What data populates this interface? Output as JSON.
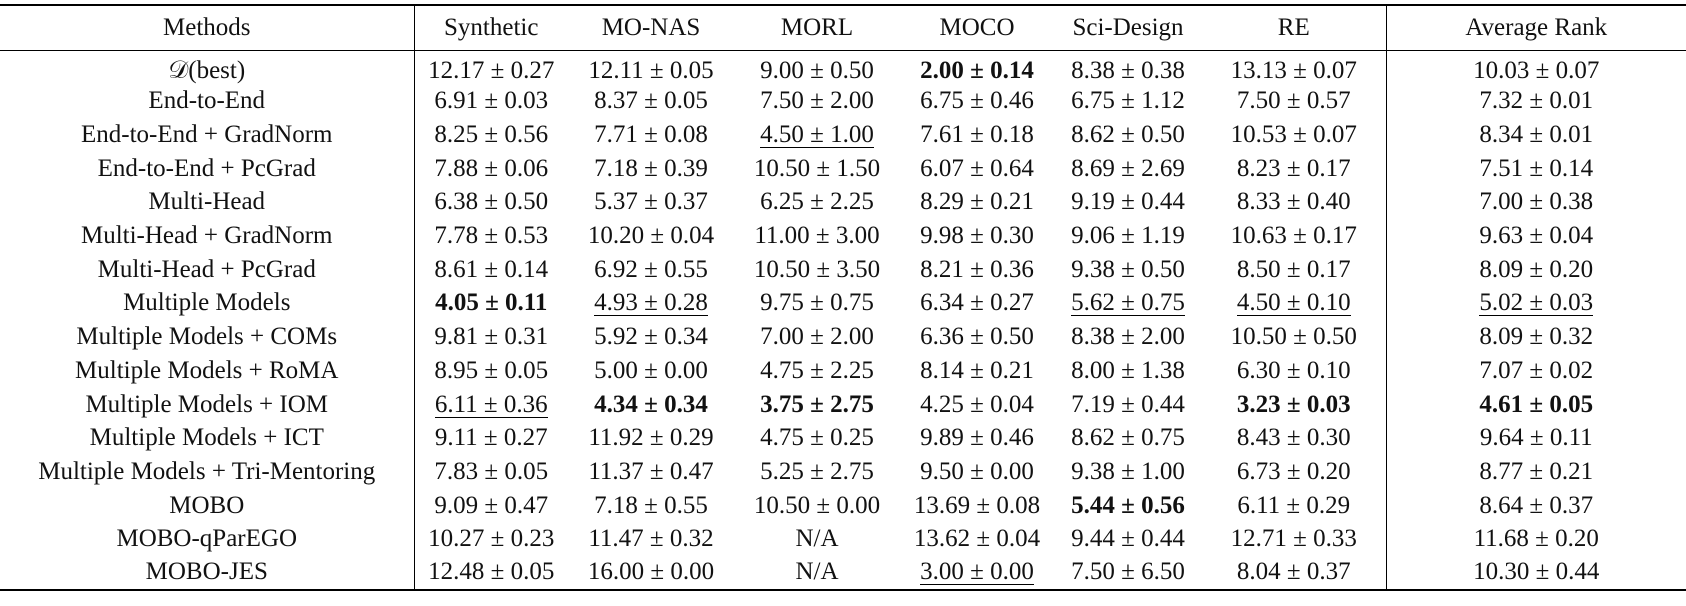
{
  "table": {
    "columns": [
      "Methods",
      "Synthetic",
      "MO-NAS",
      "MORL",
      "MOCO",
      "Sci-Design",
      "RE",
      "Average Rank"
    ],
    "rows": [
      {
        "method": "𝒟(best)",
        "cells": [
          {
            "v": "12.17 ± 0.27",
            "s": ""
          },
          {
            "v": "12.11 ± 0.05",
            "s": ""
          },
          {
            "v": "9.00 ± 0.50",
            "s": ""
          },
          {
            "v": "2.00 ± 0.14",
            "s": "bold"
          },
          {
            "v": "8.38 ± 0.38",
            "s": ""
          },
          {
            "v": "13.13 ± 0.07",
            "s": ""
          },
          {
            "v": "10.03 ± 0.07",
            "s": ""
          }
        ]
      },
      {
        "method": "End-to-End",
        "cells": [
          {
            "v": "6.91 ± 0.03",
            "s": ""
          },
          {
            "v": "8.37 ± 0.05",
            "s": ""
          },
          {
            "v": "7.50 ± 2.00",
            "s": ""
          },
          {
            "v": "6.75 ± 0.46",
            "s": ""
          },
          {
            "v": "6.75 ± 1.12",
            "s": ""
          },
          {
            "v": "7.50 ± 0.57",
            "s": ""
          },
          {
            "v": "7.32 ± 0.01",
            "s": ""
          }
        ]
      },
      {
        "method": "End-to-End + GradNorm",
        "cells": [
          {
            "v": "8.25 ± 0.56",
            "s": ""
          },
          {
            "v": "7.71 ± 0.08",
            "s": ""
          },
          {
            "v": "4.50 ± 1.00",
            "s": "underline"
          },
          {
            "v": "7.61 ± 0.18",
            "s": ""
          },
          {
            "v": "8.62 ± 0.50",
            "s": ""
          },
          {
            "v": "10.53 ± 0.07",
            "s": ""
          },
          {
            "v": "8.34 ± 0.01",
            "s": ""
          }
        ]
      },
      {
        "method": "End-to-End + PcGrad",
        "cells": [
          {
            "v": "7.88 ± 0.06",
            "s": ""
          },
          {
            "v": "7.18 ± 0.39",
            "s": ""
          },
          {
            "v": "10.50 ± 1.50",
            "s": ""
          },
          {
            "v": "6.07 ± 0.64",
            "s": ""
          },
          {
            "v": "8.69 ± 2.69",
            "s": ""
          },
          {
            "v": "8.23 ± 0.17",
            "s": ""
          },
          {
            "v": "7.51 ± 0.14",
            "s": ""
          }
        ]
      },
      {
        "method": "Multi-Head",
        "cells": [
          {
            "v": "6.38 ± 0.50",
            "s": ""
          },
          {
            "v": "5.37 ± 0.37",
            "s": ""
          },
          {
            "v": "6.25 ± 2.25",
            "s": ""
          },
          {
            "v": "8.29 ± 0.21",
            "s": ""
          },
          {
            "v": "9.19 ± 0.44",
            "s": ""
          },
          {
            "v": "8.33 ± 0.40",
            "s": ""
          },
          {
            "v": "7.00 ± 0.38",
            "s": ""
          }
        ]
      },
      {
        "method": "Multi-Head + GradNorm",
        "cells": [
          {
            "v": "7.78 ± 0.53",
            "s": ""
          },
          {
            "v": "10.20 ± 0.04",
            "s": ""
          },
          {
            "v": "11.00 ± 3.00",
            "s": ""
          },
          {
            "v": "9.98 ± 0.30",
            "s": ""
          },
          {
            "v": "9.06 ± 1.19",
            "s": ""
          },
          {
            "v": "10.63 ± 0.17",
            "s": ""
          },
          {
            "v": "9.63 ± 0.04",
            "s": ""
          }
        ]
      },
      {
        "method": "Multi-Head + PcGrad",
        "cells": [
          {
            "v": "8.61 ± 0.14",
            "s": ""
          },
          {
            "v": "6.92 ± 0.55",
            "s": ""
          },
          {
            "v": "10.50 ± 3.50",
            "s": ""
          },
          {
            "v": "8.21 ± 0.36",
            "s": ""
          },
          {
            "v": "9.38 ± 0.50",
            "s": ""
          },
          {
            "v": "8.50 ± 0.17",
            "s": ""
          },
          {
            "v": "8.09 ± 0.20",
            "s": ""
          }
        ]
      },
      {
        "method": "Multiple Models",
        "cells": [
          {
            "v": "4.05 ± 0.11",
            "s": "bold"
          },
          {
            "v": "4.93 ± 0.28",
            "s": "underline"
          },
          {
            "v": "9.75 ± 0.75",
            "s": ""
          },
          {
            "v": "6.34 ± 0.27",
            "s": ""
          },
          {
            "v": "5.62 ± 0.75",
            "s": "underline"
          },
          {
            "v": "4.50 ± 0.10",
            "s": "underline"
          },
          {
            "v": "5.02 ± 0.03",
            "s": "underline"
          }
        ]
      },
      {
        "method": "Multiple Models + COMs",
        "cells": [
          {
            "v": "9.81 ± 0.31",
            "s": ""
          },
          {
            "v": "5.92 ± 0.34",
            "s": ""
          },
          {
            "v": "7.00 ± 2.00",
            "s": ""
          },
          {
            "v": "6.36 ± 0.50",
            "s": ""
          },
          {
            "v": "8.38 ± 2.00",
            "s": ""
          },
          {
            "v": "10.50 ± 0.50",
            "s": ""
          },
          {
            "v": "8.09 ± 0.32",
            "s": ""
          }
        ]
      },
      {
        "method": "Multiple Models + RoMA",
        "cells": [
          {
            "v": "8.95 ± 0.05",
            "s": ""
          },
          {
            "v": "5.00 ± 0.00",
            "s": ""
          },
          {
            "v": "4.75 ± 2.25",
            "s": ""
          },
          {
            "v": "8.14 ± 0.21",
            "s": ""
          },
          {
            "v": "8.00 ± 1.38",
            "s": ""
          },
          {
            "v": "6.30 ± 0.10",
            "s": ""
          },
          {
            "v": "7.07 ± 0.02",
            "s": ""
          }
        ]
      },
      {
        "method": "Multiple Models + IOM",
        "cells": [
          {
            "v": "6.11 ± 0.36",
            "s": "underline"
          },
          {
            "v": "4.34 ± 0.34",
            "s": "bold"
          },
          {
            "v": "3.75 ± 2.75",
            "s": "bold"
          },
          {
            "v": "4.25 ± 0.04",
            "s": ""
          },
          {
            "v": "7.19 ± 0.44",
            "s": ""
          },
          {
            "v": "3.23 ± 0.03",
            "s": "bold"
          },
          {
            "v": "4.61 ± 0.05",
            "s": "bold"
          }
        ]
      },
      {
        "method": "Multiple Models + ICT",
        "cells": [
          {
            "v": "9.11 ± 0.27",
            "s": ""
          },
          {
            "v": "11.92 ± 0.29",
            "s": ""
          },
          {
            "v": "4.75 ± 0.25",
            "s": ""
          },
          {
            "v": "9.89 ± 0.46",
            "s": ""
          },
          {
            "v": "8.62 ± 0.75",
            "s": ""
          },
          {
            "v": "8.43 ± 0.30",
            "s": ""
          },
          {
            "v": "9.64 ± 0.11",
            "s": ""
          }
        ]
      },
      {
        "method": "Multiple Models + Tri-Mentoring",
        "cells": [
          {
            "v": "7.83 ± 0.05",
            "s": ""
          },
          {
            "v": "11.37 ± 0.47",
            "s": ""
          },
          {
            "v": "5.25 ± 2.75",
            "s": ""
          },
          {
            "v": "9.50 ± 0.00",
            "s": ""
          },
          {
            "v": "9.38 ± 1.00",
            "s": ""
          },
          {
            "v": "6.73 ± 0.20",
            "s": ""
          },
          {
            "v": "8.77 ± 0.21",
            "s": ""
          }
        ]
      },
      {
        "method": "MOBO",
        "cells": [
          {
            "v": "9.09 ± 0.47",
            "s": ""
          },
          {
            "v": "7.18 ± 0.55",
            "s": ""
          },
          {
            "v": "10.50 ± 0.00",
            "s": ""
          },
          {
            "v": "13.69 ± 0.08",
            "s": ""
          },
          {
            "v": "5.44 ± 0.56",
            "s": "bold"
          },
          {
            "v": "6.11 ± 0.29",
            "s": ""
          },
          {
            "v": "8.64 ± 0.37",
            "s": ""
          }
        ]
      },
      {
        "method": "MOBO-qParEGO",
        "cells": [
          {
            "v": "10.27 ± 0.23",
            "s": ""
          },
          {
            "v": "11.47 ± 0.32",
            "s": ""
          },
          {
            "v": "N/A",
            "s": ""
          },
          {
            "v": "13.62 ± 0.04",
            "s": ""
          },
          {
            "v": "9.44 ± 0.44",
            "s": ""
          },
          {
            "v": "12.71 ± 0.33",
            "s": ""
          },
          {
            "v": "11.68 ± 0.20",
            "s": ""
          }
        ]
      },
      {
        "method": "MOBO-JES",
        "cells": [
          {
            "v": "12.48 ± 0.05",
            "s": ""
          },
          {
            "v": "16.00 ± 0.00",
            "s": ""
          },
          {
            "v": "N/A",
            "s": ""
          },
          {
            "v": "3.00 ± 0.00",
            "s": "underline"
          },
          {
            "v": "7.50 ± 6.50",
            "s": ""
          },
          {
            "v": "8.04 ± 0.37",
            "s": ""
          },
          {
            "v": "10.30 ± 0.44",
            "s": ""
          }
        ]
      }
    ]
  }
}
